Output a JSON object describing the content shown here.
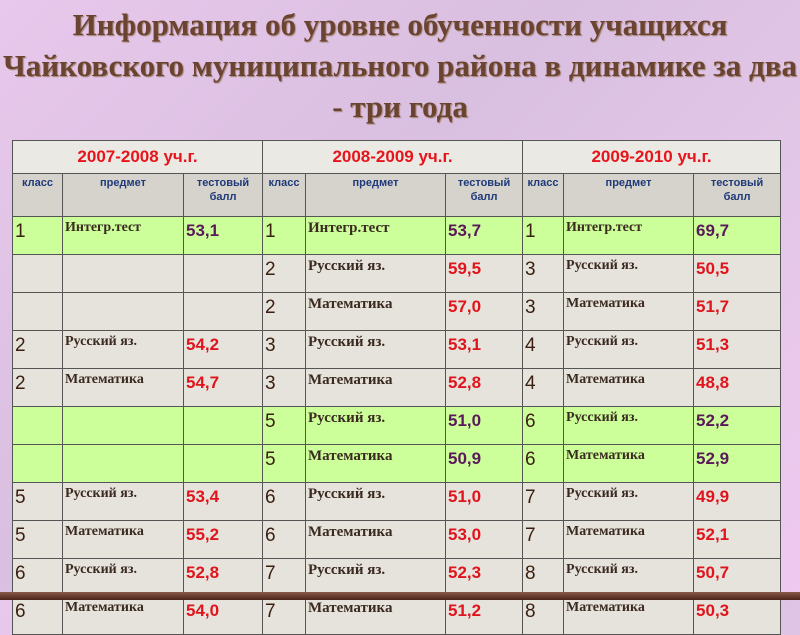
{
  "title": "Информация об уровне обученности учащихся Чайковского муниципального района в динамике за два - три года",
  "years": [
    "2007-2008 уч.г.",
    "2008-2009 уч.г.",
    "2009-2010 уч.г."
  ],
  "columns": [
    "класс",
    "предмет",
    "тестовый балл"
  ],
  "rows": [
    {
      "highlight": true,
      "cells": [
        [
          "1",
          "Интегр.тест",
          "53,1"
        ],
        [
          "1",
          "Интегр.тест",
          "53,7"
        ],
        [
          "1",
          "Интегр.тест",
          "69,7"
        ]
      ]
    },
    {
      "highlight": false,
      "cells": [
        [
          "",
          "",
          ""
        ],
        [
          "2",
          "Русский яз.",
          "59,5"
        ],
        [
          "3",
          "Русский яз.",
          "50,5"
        ]
      ]
    },
    {
      "highlight": false,
      "cells": [
        [
          "",
          "",
          ""
        ],
        [
          "2",
          "Математика",
          "57,0"
        ],
        [
          "3",
          "Математика",
          "51,7"
        ]
      ]
    },
    {
      "highlight": false,
      "cells": [
        [
          "2",
          "Русский яз.",
          "54,2"
        ],
        [
          "3",
          "Русский яз.",
          "53,1"
        ],
        [
          "4",
          "Русский яз.",
          "51,3"
        ]
      ]
    },
    {
      "highlight": false,
      "cells": [
        [
          "2",
          "Математика",
          "54,7"
        ],
        [
          "3",
          "Математика",
          "52,8"
        ],
        [
          "4",
          "Математика",
          "48,8"
        ]
      ]
    },
    {
      "highlight": true,
      "cells": [
        [
          "",
          "",
          ""
        ],
        [
          "5",
          "Русский яз.",
          "51,0"
        ],
        [
          "6",
          "Русский яз.",
          "52,2"
        ]
      ]
    },
    {
      "highlight": true,
      "cells": [
        [
          "",
          "",
          ""
        ],
        [
          "5",
          "Математика",
          "50,9"
        ],
        [
          "6",
          "Математика",
          "52,9"
        ]
      ]
    },
    {
      "highlight": false,
      "cells": [
        [
          "5",
          "Русский яз.",
          "53,4"
        ],
        [
          "6",
          "Русский яз.",
          "51,0"
        ],
        [
          "7",
          "Русский яз.",
          "49,9"
        ]
      ]
    },
    {
      "highlight": false,
      "cells": [
        [
          "5",
          "Математика",
          "55,2"
        ],
        [
          "6",
          "Математика",
          "53,0"
        ],
        [
          "7",
          "Математика",
          "52,1"
        ]
      ]
    },
    {
      "highlight": false,
      "cells": [
        [
          "6",
          "Русский яз.",
          "52,8"
        ],
        [
          "7",
          "Русский яз.",
          "52,3"
        ],
        [
          "8",
          "Русский яз.",
          "50,7"
        ]
      ]
    },
    {
      "highlight": false,
      "cells": [
        [
          "6",
          "Математика",
          "54,0"
        ],
        [
          "7",
          "Математика",
          "51,2"
        ],
        [
          "8",
          "Математика",
          "50,3"
        ]
      ]
    }
  ],
  "colors": {
    "year_header": "#e8141c",
    "column_header": "#1e3a7a",
    "score": "#e0141c",
    "score_highlight": "#5a1a5a",
    "highlight_row": "#ccff99",
    "title": "#6b4331"
  }
}
